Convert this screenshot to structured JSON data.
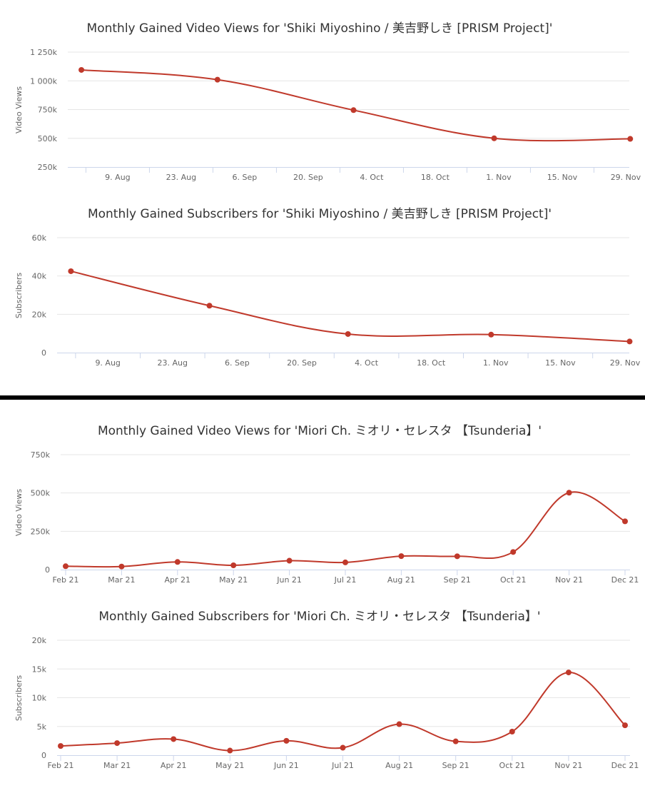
{
  "colors": {
    "series": "#c0392b",
    "grid": "#e6e6e6",
    "divider": "#000000"
  },
  "chart_data": [
    {
      "type": "line",
      "title": "Monthly Gained Video Views for 'Shiki Miyoshino / 美吉野しき [PRISM Project]'",
      "xlabel": "",
      "ylabel": "Video Views",
      "x_ticks": [
        "9. Aug",
        "23. Aug",
        "6. Sep",
        "20. Sep",
        "4. Oct",
        "18. Oct",
        "1. Nov",
        "15. Nov",
        "29. Nov"
      ],
      "y_ticks": [
        "250k",
        "500k",
        "750k",
        "1 000k",
        "1 250k"
      ],
      "ylim": [
        250000,
        1250000
      ],
      "x": [
        "2021-08-01",
        "2021-08-31",
        "2021-09-30",
        "2021-10-31",
        "2021-11-30"
      ],
      "series": [
        {
          "values": [
            1095000,
            1010000,
            745000,
            500000,
            495000
          ]
        }
      ],
      "grid": true
    },
    {
      "type": "line",
      "title": "Monthly Gained Subscribers for 'Shiki Miyoshino / 美吉野しき [PRISM Project]'",
      "xlabel": "",
      "ylabel": "Subscribers",
      "x_ticks": [
        "9. Aug",
        "23. Aug",
        "6. Sep",
        "20. Sep",
        "4. Oct",
        "18. Oct",
        "1. Nov",
        "15. Nov",
        "29. Nov"
      ],
      "y_ticks": [
        "0",
        "20k",
        "40k",
        "60k"
      ],
      "ylim": [
        0,
        60000
      ],
      "x": [
        "2021-08-01",
        "2021-08-31",
        "2021-09-30",
        "2021-10-31",
        "2021-11-30"
      ],
      "series": [
        {
          "values": [
            42500,
            24500,
            9700,
            9400,
            5800
          ]
        }
      ],
      "grid": true
    },
    {
      "type": "line",
      "title": "Monthly Gained Video Views for 'Miori Ch. ミオリ・セレスタ 【Tsunderia】'",
      "xlabel": "",
      "ylabel": "Video Views",
      "categories": [
        "Feb 21",
        "Mar 21",
        "Apr 21",
        "May 21",
        "Jun 21",
        "Jul 21",
        "Aug 21",
        "Sep 21",
        "Oct 21",
        "Nov 21",
        "Dec 21"
      ],
      "y_ticks": [
        "0",
        "250k",
        "500k",
        "750k"
      ],
      "ylim": [
        0,
        750000
      ],
      "series": [
        {
          "values": [
            22000,
            20000,
            50000,
            28000,
            58000,
            47000,
            88000,
            87000,
            115000,
            502000,
            315000
          ]
        }
      ],
      "grid": true
    },
    {
      "type": "line",
      "title": "Monthly Gained Subscribers for 'Miori Ch. ミオリ・セレスタ 【Tsunderia】'",
      "xlabel": "",
      "ylabel": "Subscribers",
      "categories": [
        "Feb 21",
        "Mar 21",
        "Apr 21",
        "May 21",
        "Jun 21",
        "Jul 21",
        "Aug 21",
        "Sep 21",
        "Oct 21",
        "Nov 21",
        "Dec 21"
      ],
      "y_ticks": [
        "0",
        "5k",
        "10k",
        "15k",
        "20k"
      ],
      "ylim": [
        0,
        20000
      ],
      "series": [
        {
          "values": [
            1600,
            2100,
            2800,
            800,
            2500,
            1300,
            5400,
            2400,
            4100,
            14400,
            5200
          ]
        }
      ],
      "grid": true
    }
  ]
}
